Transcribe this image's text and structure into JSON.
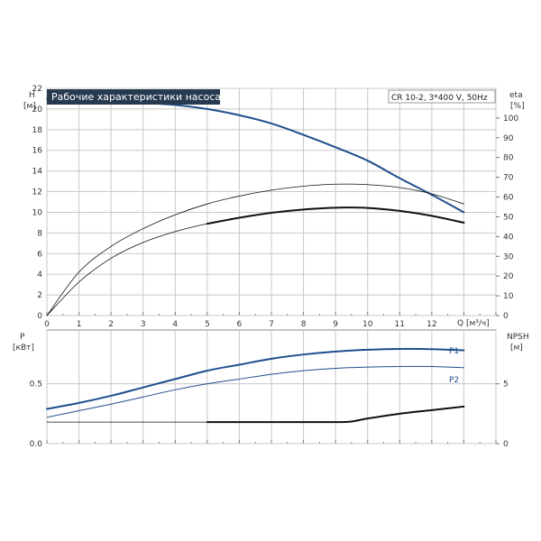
{
  "colors": {
    "curve_blue": "#1f4e8c",
    "curve_black": "#111111",
    "title_bg": "#283a50",
    "grid": "#c8c8c8"
  },
  "chart_data": [
    {
      "type": "line",
      "title": "Рабочие характеристики насоса",
      "subtitle": "CR 10-2, 3*400 V, 50Hz",
      "xlabel": "Q [м³/ч]",
      "ylabel_top": "H",
      "ylabel_unit": "[м]",
      "y2label_top": "eta",
      "y2label_unit": "[%]",
      "xlim": [
        0,
        14
      ],
      "ylim": [
        0,
        22
      ],
      "y2lim": [
        0,
        115
      ],
      "x_ticks": [
        0,
        1,
        2,
        3,
        4,
        5,
        6,
        7,
        8,
        9,
        10,
        11,
        12
      ],
      "y_ticks": [
        0,
        2,
        4,
        6,
        8,
        10,
        12,
        14,
        16,
        18,
        20,
        22
      ],
      "y2_ticks": [
        0,
        10,
        20,
        30,
        40,
        50,
        60,
        70,
        80,
        90,
        100
      ],
      "series": [
        {
          "axis": "y",
          "style": "thick-blue",
          "x": [
            0,
            1,
            2,
            3,
            4,
            5,
            6,
            7,
            8,
            9,
            10,
            11,
            12,
            13
          ],
          "y": [
            21.0,
            20.9,
            20.75,
            20.6,
            20.4,
            20.0,
            19.4,
            18.6,
            17.5,
            16.3,
            15.0,
            13.3,
            11.7,
            10.0
          ]
        },
        {
          "axis": "y2",
          "style": "thin-black",
          "x": [
            0,
            1,
            2,
            3,
            4,
            5,
            6,
            7,
            8,
            9,
            10,
            11,
            12,
            13
          ],
          "y": [
            0,
            22,
            35,
            44,
            51,
            56.5,
            60.5,
            63.5,
            65.5,
            66.5,
            66.3,
            64.8,
            61.6,
            56.5
          ]
        },
        {
          "axis": "y2",
          "style": "thin-black",
          "x": [
            0,
            1,
            2,
            3,
            4,
            5,
            6,
            7,
            8,
            9,
            10,
            11,
            12,
            13
          ],
          "y": [
            0,
            17,
            29,
            37,
            42.5,
            46.5,
            49.5,
            52,
            53.7,
            54.6,
            54.5,
            53,
            50.5,
            47
          ]
        },
        {
          "axis": "y2",
          "style": "thick-black",
          "x": [
            5,
            6,
            7,
            8,
            9,
            10,
            11,
            12,
            13
          ],
          "y": [
            46.5,
            49.5,
            52,
            53.7,
            54.6,
            54.5,
            53,
            50.5,
            47
          ]
        }
      ]
    },
    {
      "type": "line",
      "ylabel_top": "P",
      "ylabel_unit": "[кВт]",
      "y2label_top": "NPSH",
      "y2label_unit": "[м]",
      "xlim": [
        0,
        14
      ],
      "ylim": [
        0,
        0.95
      ],
      "y2lim": [
        0,
        9.5
      ],
      "x_ticks": [
        0,
        1,
        2,
        3,
        4,
        5,
        6,
        7,
        8,
        9,
        10,
        11,
        12,
        13,
        14
      ],
      "y_ticks": [
        0,
        0.5
      ],
      "y_tick_labels": [
        "0.0",
        "0.5"
      ],
      "y2_ticks": [
        0,
        5
      ],
      "y2_tick_labels": [
        "0",
        "5"
      ],
      "series": [
        {
          "name": "P1",
          "axis": "y",
          "style": "blue-p1",
          "x": [
            0,
            1,
            2,
            3,
            4,
            5,
            6,
            7,
            8,
            9,
            10,
            11,
            12,
            13
          ],
          "y": [
            0.29,
            0.34,
            0.4,
            0.47,
            0.54,
            0.61,
            0.66,
            0.71,
            0.745,
            0.77,
            0.785,
            0.792,
            0.79,
            0.78
          ]
        },
        {
          "name": "P2",
          "axis": "y",
          "style": "blue-p2",
          "x": [
            0,
            1,
            2,
            3,
            4,
            5,
            6,
            7,
            8,
            9,
            10,
            11,
            12,
            13
          ],
          "y": [
            0.22,
            0.275,
            0.33,
            0.39,
            0.45,
            0.5,
            0.54,
            0.58,
            0.61,
            0.63,
            0.64,
            0.645,
            0.645,
            0.635
          ]
        },
        {
          "axis": "y2",
          "style": "thin-black",
          "x": [
            0,
            1,
            2,
            3,
            4,
            5
          ],
          "y": [
            1.8,
            1.8,
            1.8,
            1.8,
            1.8,
            1.8
          ]
        },
        {
          "axis": "y2",
          "style": "thick-black",
          "x": [
            5,
            6,
            7,
            8,
            9,
            9.5,
            10,
            11,
            12,
            13
          ],
          "y": [
            1.8,
            1.8,
            1.8,
            1.8,
            1.8,
            1.85,
            2.1,
            2.5,
            2.8,
            3.1
          ]
        }
      ]
    }
  ]
}
